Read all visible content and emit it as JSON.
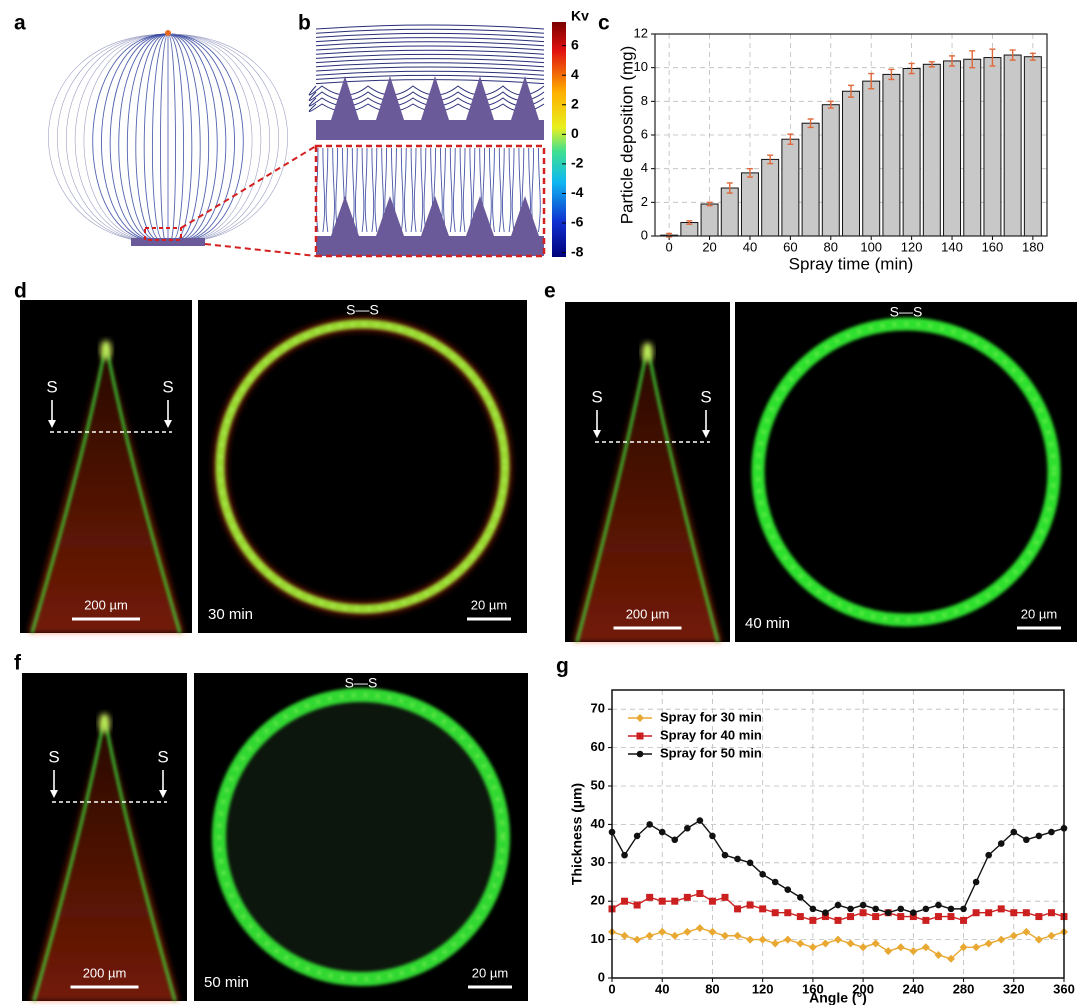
{
  "field_simulation": {
    "panels": [
      "a",
      "b"
    ],
    "colorbar": {
      "label": "Kv",
      "lim": [
        -8.3,
        7.6
      ],
      "ticks": [
        6,
        4,
        2,
        0,
        -2,
        -4,
        -6,
        -8
      ]
    }
  },
  "chart_data": [
    {
      "type": "bar",
      "panel": "c",
      "xlabel": "Spray time  (min)",
      "ylabel": "Particle deposition (mg)",
      "x": [
        0,
        10,
        20,
        30,
        40,
        50,
        60,
        70,
        80,
        90,
        100,
        110,
        120,
        130,
        140,
        150,
        160,
        170,
        180
      ],
      "values": [
        0.05,
        0.8,
        1.9,
        2.85,
        3.75,
        4.55,
        5.75,
        6.7,
        7.8,
        8.6,
        9.2,
        9.6,
        9.95,
        10.2,
        10.4,
        10.5,
        10.6,
        10.75,
        10.65
      ],
      "errors": [
        0.1,
        0.1,
        0.1,
        0.3,
        0.25,
        0.25,
        0.3,
        0.25,
        0.2,
        0.35,
        0.45,
        0.3,
        0.3,
        0.15,
        0.3,
        0.5,
        0.5,
        0.3,
        0.2
      ],
      "color": "#c8c8c8",
      "error_color": "#e0683a",
      "xlim": [
        -7,
        187
      ],
      "xticks": [
        0,
        20,
        40,
        60,
        80,
        100,
        120,
        140,
        160,
        180
      ],
      "ylim": [
        0,
        12
      ],
      "yticks": [
        0,
        2,
        4,
        6,
        8,
        10,
        12
      ],
      "grid": true
    },
    {
      "type": "line",
      "panel": "g",
      "xlabel": "Angle (°)",
      "ylabel": "Thickness (µm)",
      "x": [
        0,
        10,
        20,
        30,
        40,
        50,
        60,
        70,
        80,
        90,
        100,
        110,
        120,
        130,
        140,
        150,
        160,
        170,
        180,
        190,
        200,
        210,
        220,
        230,
        240,
        250,
        260,
        270,
        280,
        290,
        300,
        310,
        320,
        330,
        340,
        350,
        360
      ],
      "series": [
        {
          "name": "Spray for 30 min",
          "color": "#e8a831",
          "marker": "diamond",
          "values": [
            12,
            11,
            10,
            11,
            12,
            11,
            12,
            13,
            12,
            11,
            11,
            10,
            10,
            9,
            10,
            9,
            8,
            9,
            10,
            9,
            8,
            9,
            7,
            8,
            7,
            8,
            6,
            5,
            8,
            8,
            9,
            10,
            11,
            12,
            10,
            11,
            12
          ]
        },
        {
          "name": "Spray for 40 min",
          "color": "#cc2020",
          "marker": "square",
          "values": [
            18,
            20,
            19,
            21,
            20,
            20,
            21,
            22,
            20,
            21,
            18,
            19,
            18,
            17,
            17,
            16,
            15,
            16,
            15,
            16,
            17,
            16,
            17,
            16,
            16,
            15,
            16,
            16,
            15,
            17,
            17,
            18,
            17,
            17,
            16,
            17,
            16
          ]
        },
        {
          "name": "Spray for 50 min",
          "color": "#111111",
          "marker": "circle",
          "values": [
            38,
            32,
            37,
            40,
            38,
            36,
            39,
            41,
            37,
            32,
            31,
            30,
            27,
            25,
            23,
            21,
            18,
            17,
            19,
            18,
            19,
            18,
            17,
            18,
            17,
            18,
            19,
            18,
            18,
            25,
            32,
            35,
            38,
            36,
            37,
            38,
            39
          ]
        }
      ],
      "xlim": [
        0,
        360
      ],
      "xticks": [
        0,
        40,
        80,
        120,
        160,
        200,
        240,
        280,
        320,
        360
      ],
      "ylim": [
        0,
        75
      ],
      "yticks": [
        0,
        10,
        20,
        30,
        40,
        50,
        60,
        70
      ],
      "grid": true,
      "legend": "upper left"
    }
  ],
  "micrographs": [
    {
      "panel": "d",
      "marker": "S",
      "section": "S—S",
      "time": "30 min",
      "scale_left": "200 µm",
      "scale_right": "20 µm"
    },
    {
      "panel": "e",
      "marker": "S",
      "section": "S—S",
      "time": "40 min",
      "scale_left": "200 µm",
      "scale_right": "20 µm"
    },
    {
      "panel": "f",
      "marker": "S",
      "section": "S—S",
      "time": "50 min",
      "scale_left": "200 µm",
      "scale_right": "20 µm"
    }
  ]
}
